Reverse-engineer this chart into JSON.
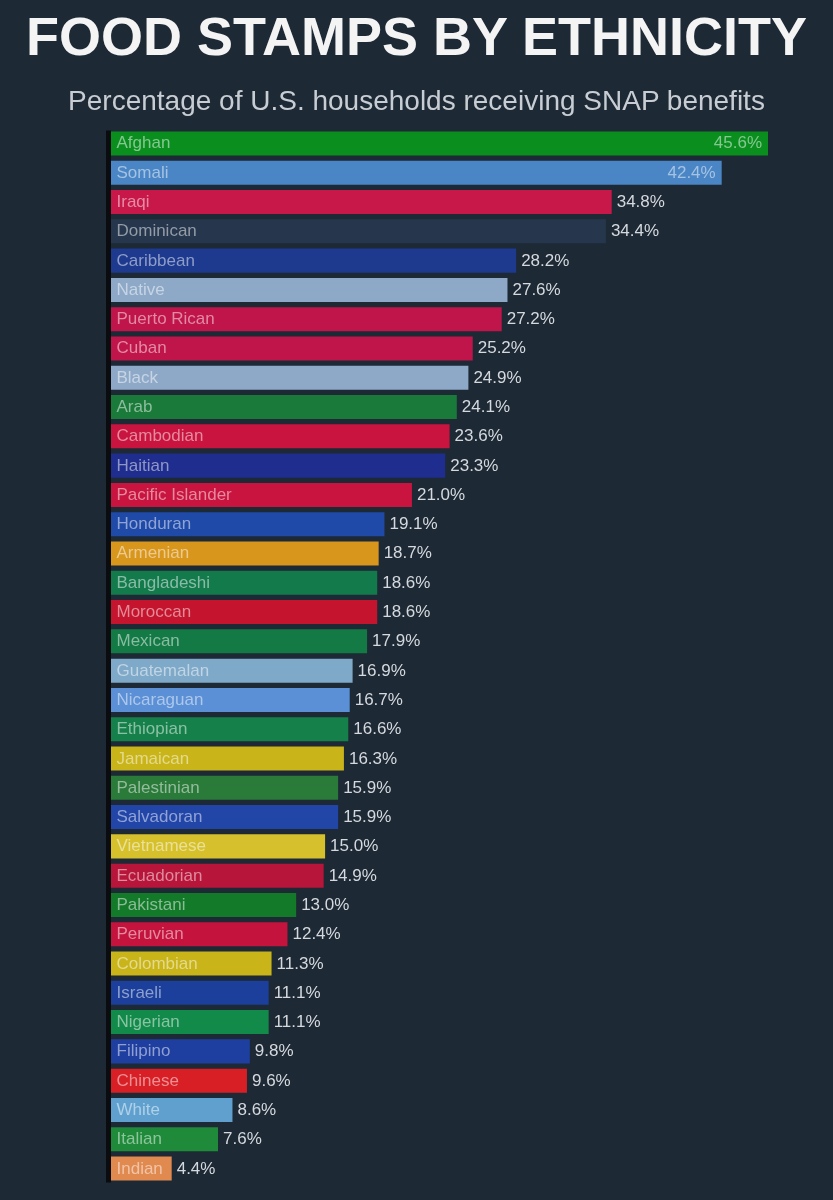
{
  "chart_data": {
    "type": "bar",
    "orientation": "horizontal",
    "title": "FOOD STAMPS BY ETHNICITY",
    "subtitle": "Percentage of U.S. households receiving SNAP benefits",
    "categories": [
      "Afghan",
      "Somali",
      "Iraqi",
      "Dominican",
      "Caribbean",
      "Native",
      "Puerto Rican",
      "Cuban",
      "Black",
      "Arab",
      "Cambodian",
      "Haitian",
      "Pacific Islander",
      "Honduran",
      "Armenian",
      "Bangladeshi",
      "Moroccan",
      "Mexican",
      "Guatemalan",
      "Nicaraguan",
      "Ethiopian",
      "Jamaican",
      "Palestinian",
      "Salvadoran",
      "Vietnamese",
      "Ecuadorian",
      "Pakistani",
      "Peruvian",
      "Colombian",
      "Israeli",
      "Nigerian",
      "Filipino",
      "Chinese",
      "White",
      "Italian",
      "Indian"
    ],
    "values": [
      45.6,
      42.4,
      34.8,
      34.4,
      28.2,
      27.6,
      27.2,
      25.2,
      24.9,
      24.1,
      23.6,
      23.3,
      21.0,
      19.1,
      18.7,
      18.6,
      18.6,
      17.9,
      16.9,
      16.7,
      16.6,
      16.3,
      15.9,
      15.9,
      15.0,
      14.9,
      13.0,
      12.4,
      11.3,
      11.1,
      11.1,
      9.8,
      9.6,
      8.6,
      7.6,
      4.4
    ],
    "value_labels": [
      "45.6%",
      "42.4%",
      "34.8%",
      "34.4%",
      "28.2%",
      "27.6%",
      "27.2%",
      "25.2%",
      "24.9%",
      "24.1%",
      "23.6%",
      "23.3%",
      "21.0%",
      "19.1%",
      "18.7%",
      "18.6%",
      "18.6%",
      "17.9%",
      "16.9%",
      "16.7%",
      "16.6%",
      "16.3%",
      "15.9%",
      "15.9%",
      "15.0%",
      "14.9%",
      "13.0%",
      "12.4%",
      "11.3%",
      "11.1%",
      "11.1%",
      "9.8%",
      "9.6%",
      "8.6%",
      "7.6%",
      "4.4%"
    ],
    "colors": [
      "#0a8f1f",
      "#4a86c5",
      "#c8184a",
      "#26374d",
      "#1d3a8f",
      "#8ea9c8",
      "#c0154a",
      "#c0154a",
      "#8ea9c8",
      "#1a7a3a",
      "#c8143e",
      "#1f2e8e",
      "#c8143e",
      "#1f4aa8",
      "#d8961c",
      "#137a4c",
      "#c4142e",
      "#137a45",
      "#7fa9c8",
      "#5b8fd6",
      "#16804a",
      "#c9b41a",
      "#2a7a3a",
      "#2245a8",
      "#d6c12c",
      "#b8153a",
      "#137a2a",
      "#c4143e",
      "#c9b41a",
      "#1b3f9a",
      "#128a4a",
      "#1f3fa0",
      "#d81f26",
      "#5fa0cf",
      "#1e8a3a",
      "#e08a50"
    ],
    "tick_labels": "y"
  }
}
